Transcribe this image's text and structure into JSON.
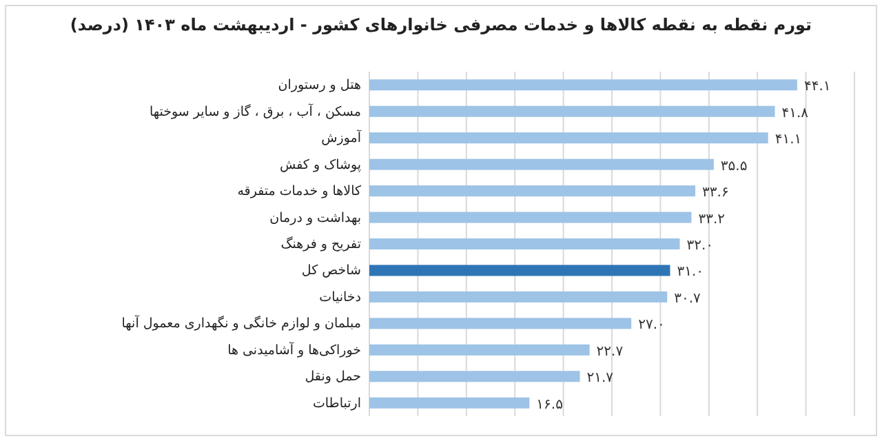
{
  "chart_data": {
    "type": "bar",
    "orientation": "horizontal",
    "title": "تورم نقطه به نقطه کالاها و خدمات مصرفی خانوارهای کشور - اردیبهشت ماه ۱۴۰۳ (درصد)",
    "categories": [
      "هتل و رستوران",
      "مسکن ، آب ، برق ، گاز و سایر سوختها",
      "آموزش",
      "پوشاک و کفش",
      "کالاها و خدمات متفرقه",
      "بهداشت و درمان",
      "تفریح و فرهنگ",
      "شاخص کل",
      "دخانیات",
      "مبلمان و لوازم خانگی و نگهداری معمول آنها",
      "خوراکی‌ها و آشامیدنی ها",
      "حمل ونقل",
      "ارتباطات"
    ],
    "values": [
      44.1,
      41.8,
      41.1,
      35.5,
      33.6,
      33.2,
      32.0,
      31.0,
      30.7,
      27.0,
      22.7,
      21.7,
      16.5
    ],
    "value_labels": [
      "۴۴.۱",
      "۴۱.۸",
      "۴۱.۱",
      "۳۵.۵",
      "۳۳.۶",
      "۳۳.۲",
      "۳۲.۰",
      "۳۱.۰",
      "۳۰.۷",
      "۲۷.۰",
      "۲۲.۷",
      "۲۱.۷",
      "۱۶.۵"
    ],
    "colors": [
      "#9dc3e6",
      "#9dc3e6",
      "#9dc3e6",
      "#9dc3e6",
      "#9dc3e6",
      "#9dc3e6",
      "#9dc3e6",
      "#2e75b6",
      "#9dc3e6",
      "#9dc3e6",
      "#9dc3e6",
      "#9dc3e6",
      "#9dc3e6"
    ],
    "xlim": [
      0,
      50
    ],
    "xticks": [
      {
        "value": 0,
        "label": null
      },
      {
        "value": 5,
        "label": null
      },
      {
        "value": 10,
        "label": null
      },
      {
        "value": 15,
        "label": null
      },
      {
        "value": 20,
        "label": null
      },
      {
        "value": 25,
        "label": null
      },
      {
        "value": 30,
        "label": null
      },
      {
        "value": 35,
        "label": null
      },
      {
        "value": 40,
        "label": null
      },
      {
        "value": 45,
        "label": null
      },
      {
        "value": 50,
        "label": null
      }
    ],
    "tick_labels": "y",
    "grid": "x"
  }
}
